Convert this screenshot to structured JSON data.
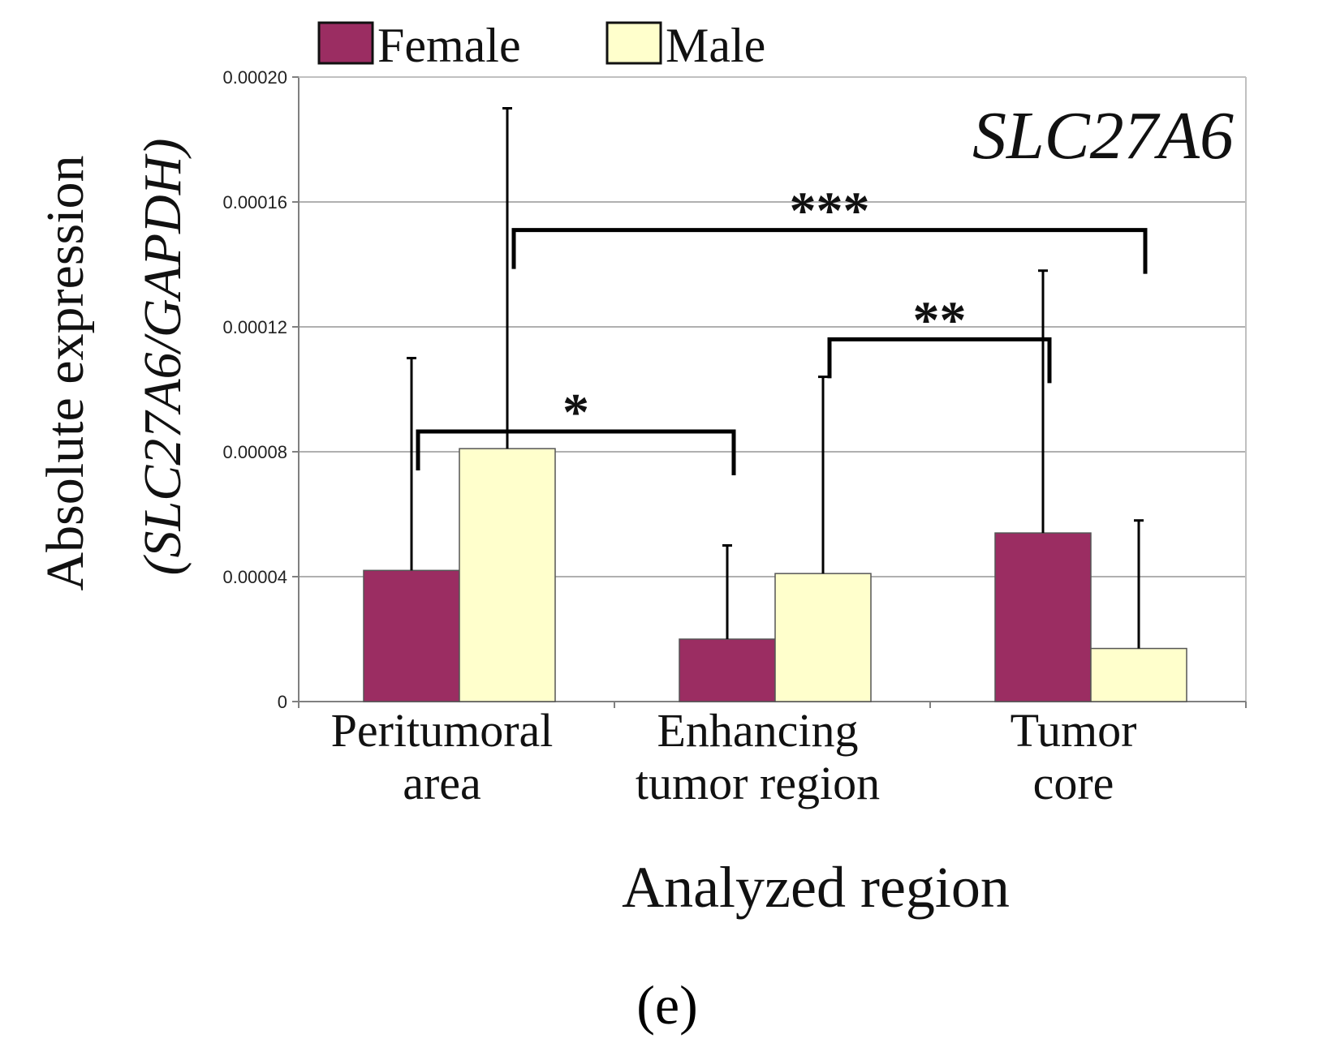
{
  "chart_data": {
    "type": "bar",
    "title": "SLC27A6",
    "xlabel": "Analyzed region",
    "ylabel_line1": "Absolute expression",
    "ylabel_line2": "(SLC27A6/GAPDH)",
    "ylim": [
      0,
      0.0002
    ],
    "yticks": [
      "0",
      "0.00004",
      "0.00008",
      "0.00012",
      "0.00016",
      "0.00020"
    ],
    "ytick_values": [
      0,
      4e-05,
      8e-05,
      0.00012,
      0.00016,
      0.0002
    ],
    "grid": true,
    "legend_position": "top-left",
    "categories": [
      {
        "line1": "Peritumoral",
        "line2": "area"
      },
      {
        "line1": "Enhancing",
        "line2": "tumor region"
      },
      {
        "line1": "Tumor",
        "line2": "core"
      }
    ],
    "series": [
      {
        "name": "Female",
        "color": "#9b2d62",
        "values": [
          4.2e-05,
          2e-05,
          5.4e-05
        ],
        "error_upper": [
          0.00011,
          5e-05,
          0.000138
        ]
      },
      {
        "name": "Male",
        "color": "#ffffcc",
        "values": [
          8.1e-05,
          4.1e-05,
          1.7e-05
        ],
        "error_upper": [
          0.00019,
          0.000104,
          5.8e-05
        ]
      }
    ],
    "significance": [
      {
        "label": "*",
        "from": {
          "category": 0,
          "series": 0
        },
        "to": {
          "category": 1,
          "series": 0
        },
        "level": 8.65e-05
      },
      {
        "label": "**",
        "from": {
          "category": 1,
          "series": 1
        },
        "to": {
          "category": 2,
          "series": 0
        },
        "level": 0.000116
      },
      {
        "label": "***",
        "from": {
          "category": 0,
          "series": 1
        },
        "to": {
          "category": 2,
          "series": 1
        },
        "level": 0.000151
      }
    ],
    "panel_label": "(e)"
  }
}
